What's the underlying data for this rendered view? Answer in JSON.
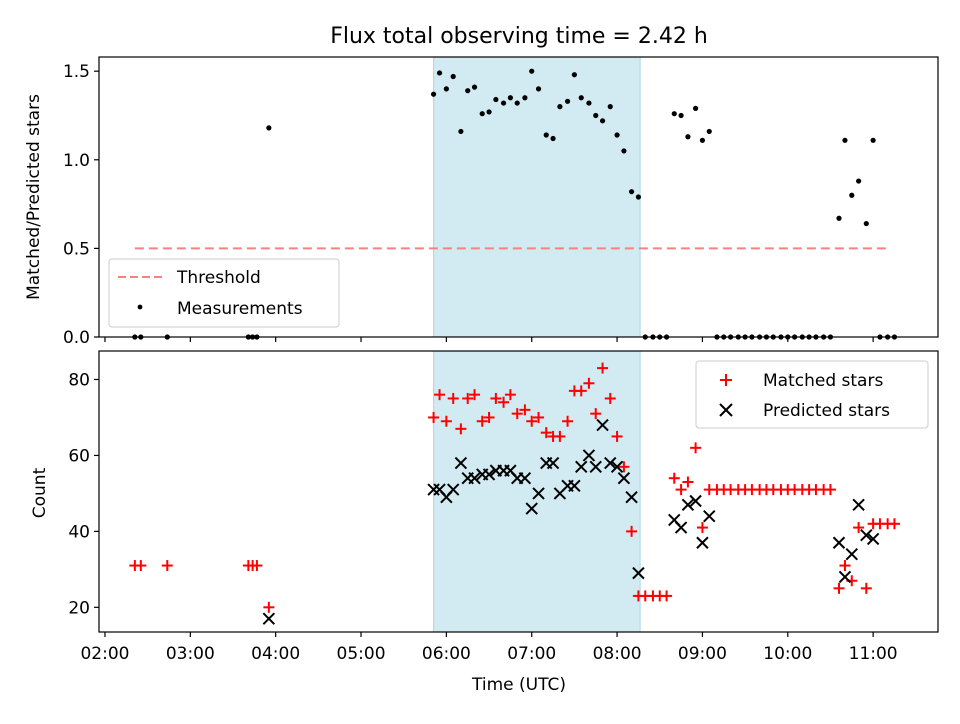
{
  "title": "Flux total observing time = 2.42 h",
  "colors": {
    "threshold": "#ff7f7f",
    "measurement": "#000000",
    "matched": "#ff0000",
    "predicted": "#000000",
    "shade": "#add8e6"
  },
  "chart_data": [
    {
      "type": "scatter",
      "ylabel": "Matched/Predicted stars",
      "ylim": [
        0,
        1.58
      ],
      "yticks": [
        0.0,
        0.5,
        1.0,
        1.5
      ],
      "ytick_labels": [
        "0.0",
        "0.5",
        "1.0",
        "1.5"
      ],
      "xlim": [
        1.93,
        11.76
      ],
      "shaded_interval": [
        5.85,
        8.27
      ],
      "threshold": {
        "label": "Threshold",
        "y": 0.5,
        "x": [
          2.35,
          11.2
        ]
      },
      "legend": {
        "position": "lower-left",
        "entries": [
          "Threshold",
          "Measurements"
        ]
      },
      "series": [
        {
          "name": "Measurements",
          "x": [
            2.35,
            2.42,
            2.73,
            3.68,
            3.73,
            3.78,
            3.92,
            5.85,
            5.92,
            6.0,
            6.08,
            6.17,
            6.25,
            6.33,
            6.42,
            6.5,
            6.58,
            6.67,
            6.75,
            6.83,
            6.92,
            7.0,
            7.08,
            7.17,
            7.25,
            7.33,
            7.42,
            7.5,
            7.58,
            7.67,
            7.75,
            7.83,
            7.92,
            8.0,
            8.08,
            8.17,
            8.25,
            8.33,
            8.42,
            8.5,
            8.58,
            8.67,
            8.75,
            8.83,
            8.92,
            9.0,
            9.08,
            9.17,
            9.25,
            9.33,
            9.42,
            9.5,
            9.58,
            9.67,
            9.75,
            9.83,
            9.92,
            10.0,
            10.08,
            10.17,
            10.25,
            10.33,
            10.42,
            10.5,
            10.6,
            10.67,
            10.75,
            10.83,
            10.92,
            11.0,
            11.08,
            11.17,
            11.25
          ],
          "y": [
            0,
            0,
            0,
            0,
            0,
            0,
            1.18,
            1.37,
            1.49,
            1.4,
            1.47,
            1.16,
            1.39,
            1.41,
            1.26,
            1.27,
            1.34,
            1.32,
            1.35,
            1.32,
            1.35,
            1.5,
            1.4,
            1.14,
            1.12,
            1.3,
            1.33,
            1.48,
            1.35,
            1.32,
            1.25,
            1.22,
            1.3,
            1.14,
            1.05,
            0.82,
            0.79,
            0,
            0,
            0,
            0,
            1.26,
            1.25,
            1.13,
            1.29,
            1.11,
            1.16,
            0,
            0,
            0,
            0,
            0,
            0,
            0,
            0,
            0,
            0,
            0,
            0,
            0,
            0,
            0,
            0,
            0,
            0.67,
            1.11,
            0.8,
            0.88,
            0.64,
            1.11,
            0,
            0,
            0
          ]
        }
      ]
    },
    {
      "type": "scatter",
      "xlabel": "Time (UTC)",
      "ylabel": "Count",
      "ylim": [
        13.5,
        87.5
      ],
      "yticks": [
        20,
        40,
        60,
        80
      ],
      "ytick_labels": [
        "20",
        "40",
        "60",
        "80"
      ],
      "xlim": [
        1.93,
        11.76
      ],
      "xticks": [
        2,
        3,
        4,
        5,
        6,
        7,
        8,
        9,
        10,
        11
      ],
      "xtick_labels": [
        "02:00",
        "03:00",
        "04:00",
        "05:00",
        "06:00",
        "07:00",
        "08:00",
        "09:00",
        "10:00",
        "11:00"
      ],
      "shaded_interval": [
        5.85,
        8.27
      ],
      "legend": {
        "position": "upper-right",
        "entries": [
          "Matched stars",
          "Predicted stars"
        ]
      },
      "series": [
        {
          "name": "Matched stars",
          "marker": "+",
          "x": [
            2.35,
            2.42,
            2.73,
            3.68,
            3.73,
            3.78,
            3.92,
            5.85,
            5.92,
            6.0,
            6.08,
            6.17,
            6.25,
            6.33,
            6.42,
            6.5,
            6.58,
            6.67,
            6.75,
            6.83,
            6.92,
            7.0,
            7.08,
            7.17,
            7.25,
            7.33,
            7.42,
            7.5,
            7.58,
            7.67,
            7.75,
            7.83,
            7.92,
            8.0,
            8.08,
            8.17,
            8.25,
            8.33,
            8.42,
            8.5,
            8.58,
            8.67,
            8.75,
            8.83,
            8.92,
            9.0,
            9.08,
            9.17,
            9.25,
            9.33,
            9.42,
            9.5,
            9.58,
            9.67,
            9.75,
            9.83,
            9.92,
            10.0,
            10.08,
            10.17,
            10.25,
            10.33,
            10.42,
            10.5,
            10.6,
            10.67,
            10.75,
            10.83,
            10.92,
            11.0,
            11.08,
            11.17,
            11.25
          ],
          "y": [
            31,
            31,
            31,
            31,
            31,
            31,
            20,
            70,
            76,
            69,
            75,
            67,
            75,
            76,
            69,
            70,
            75,
            74,
            76,
            71,
            72,
            69,
            70,
            66,
            65,
            65,
            69,
            77,
            77,
            79,
            71,
            83,
            75,
            65,
            57,
            40,
            23,
            23,
            23,
            23,
            23,
            54,
            51,
            53,
            62,
            41,
            51,
            51,
            51,
            51,
            51,
            51,
            51,
            51,
            51,
            51,
            51,
            51,
            51,
            51,
            51,
            51,
            51,
            51,
            25,
            31,
            27,
            41,
            25,
            42,
            42,
            42,
            42
          ]
        },
        {
          "name": "Predicted stars",
          "marker": "x",
          "x": [
            3.92,
            5.85,
            5.92,
            6.0,
            6.08,
            6.17,
            6.25,
            6.33,
            6.42,
            6.5,
            6.58,
            6.67,
            6.75,
            6.83,
            6.92,
            7.0,
            7.08,
            7.17,
            7.25,
            7.33,
            7.42,
            7.5,
            7.58,
            7.67,
            7.75,
            7.83,
            7.92,
            8.0,
            8.08,
            8.17,
            8.25,
            8.67,
            8.75,
            8.83,
            8.92,
            9.0,
            9.08,
            10.6,
            10.67,
            10.75,
            10.83,
            10.92,
            11.0
          ],
          "y": [
            17,
            51,
            51,
            49,
            51,
            58,
            54,
            54,
            55,
            55,
            56,
            56,
            56,
            54,
            54,
            46,
            50,
            58,
            58,
            50,
            52,
            52,
            57,
            60,
            57,
            68,
            58,
            57,
            54,
            49,
            29,
            43,
            41,
            47,
            48,
            37,
            44,
            37,
            28,
            34,
            47,
            39,
            38
          ]
        }
      ]
    }
  ]
}
